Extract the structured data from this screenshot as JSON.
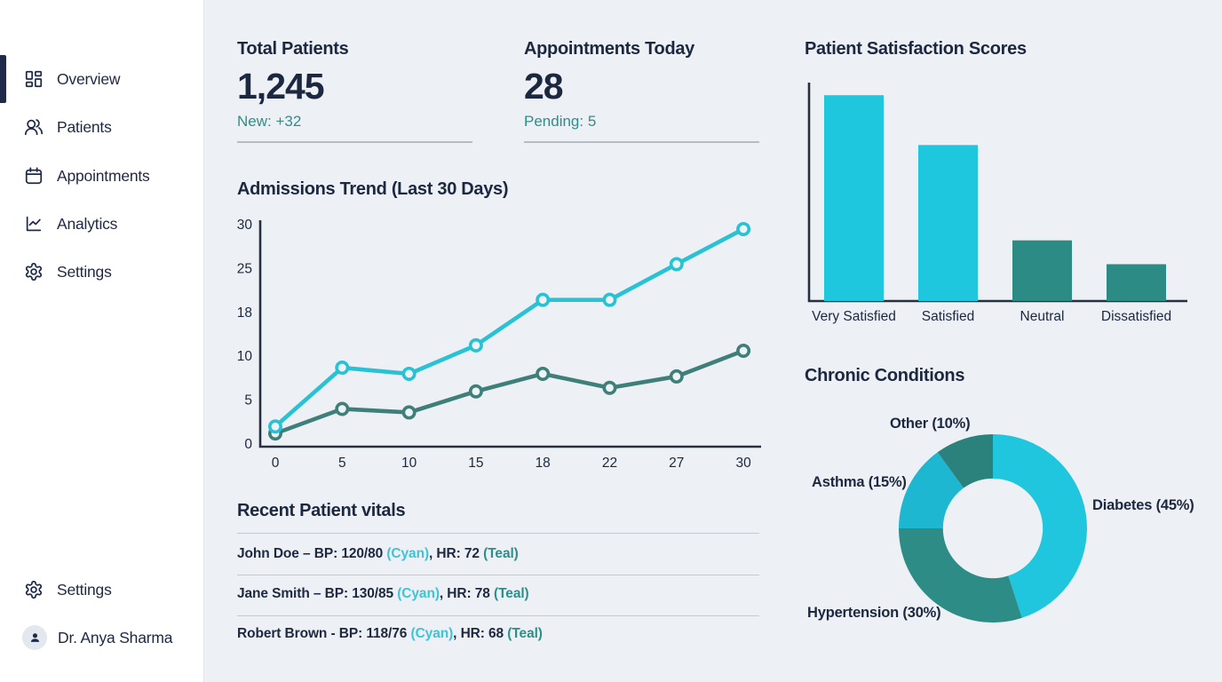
{
  "sidebar": {
    "items": [
      {
        "label": "Overview",
        "icon": "dashboard-icon",
        "active": true
      },
      {
        "label": "Patients",
        "icon": "patients-icon",
        "active": false
      },
      {
        "label": "Appointments",
        "icon": "calendar-icon",
        "active": false
      },
      {
        "label": "Analytics",
        "icon": "analytics-icon",
        "active": false
      },
      {
        "label": "Settings",
        "icon": "gear-icon",
        "active": false
      }
    ],
    "footer": {
      "settings_label": "Settings",
      "profile_name": "Dr. Anya Sharma"
    }
  },
  "stats": [
    {
      "title": "Total Patients",
      "value": "1,245",
      "sub": "New: +32"
    },
    {
      "title": "Appointments Today",
      "value": "28",
      "sub": "Pending: 5"
    }
  ],
  "vitals": {
    "title": "Recent Patient vitals",
    "rows": [
      {
        "prefix": "John Doe – BP: 120/80 ",
        "cyan": "(Cyan)",
        "mid": ", HR: 72 ",
        "teal": "(Teal)"
      },
      {
        "prefix": "Jane Smith – BP: 130/85 ",
        "cyan": "(Cyan)",
        "mid": ", HR: 78 ",
        "teal": "(Teal)"
      },
      {
        "prefix": "Robert Brown - BP: 118/76 ",
        "cyan": "(Cyan)",
        "mid": ", HR: 68 ",
        "teal": "(Teal)"
      }
    ]
  },
  "colors": {
    "navy_text": "#1b2840",
    "cyan_accent": "#3fc3d6",
    "teal_accent": "#2e8f8a",
    "main_background": "#edf0f4",
    "sidebar_background": "#ffffff"
  },
  "chart_data": [
    {
      "type": "line",
      "title": "Admissions Trend (Last 30 Days)",
      "x": [
        0,
        5,
        10,
        15,
        18,
        22,
        27,
        30
      ],
      "y_ticks": [
        0,
        5,
        10,
        18,
        25,
        30
      ],
      "ylim": [
        0,
        30
      ],
      "grid": false,
      "legend": "none",
      "series": [
        {
          "name": "cyan",
          "color": "#29c2d4",
          "marker_fill": "#eef3f6",
          "values": [
            2,
            8.7,
            8,
            12,
            20,
            20,
            25.5,
            29.5
          ]
        },
        {
          "name": "teal",
          "color": "#3f7f79",
          "marker_fill": "#eef3f6",
          "values": [
            1.2,
            4,
            3.6,
            6,
            8,
            6.4,
            7.7,
            11
          ]
        }
      ]
    },
    {
      "type": "bar",
      "title": "Patient Satisfaction Scores",
      "categories": [
        "Very Satisfied",
        "Satisfied",
        "Neutral",
        "Dissatisfied"
      ],
      "values": [
        95,
        72,
        28,
        17
      ],
      "bar_colors": [
        "#1ec7de",
        "#1ec7de",
        "#2d8b85",
        "#2d8b85"
      ],
      "xlabel": "",
      "ylabel": "",
      "ylim": [
        0,
        100
      ],
      "grid": false,
      "legend": "none"
    },
    {
      "type": "pie",
      "title": "Chronic Conditions",
      "donut": true,
      "inner_radius_ratio": 0.53,
      "start_angle_deg": 0,
      "direction": "clockwise",
      "slices": [
        {
          "label": "Diabetes (45%)",
          "value": 45,
          "color": "#1fc6de"
        },
        {
          "label": "Hypertension (30%)",
          "value": 30,
          "color": "#2e8c86"
        },
        {
          "label": "Asthma (15%)",
          "value": 15,
          "color": "#1db7d2"
        },
        {
          "label": "Other (10%)",
          "value": 10,
          "color": "#2b827d"
        }
      ]
    }
  ]
}
